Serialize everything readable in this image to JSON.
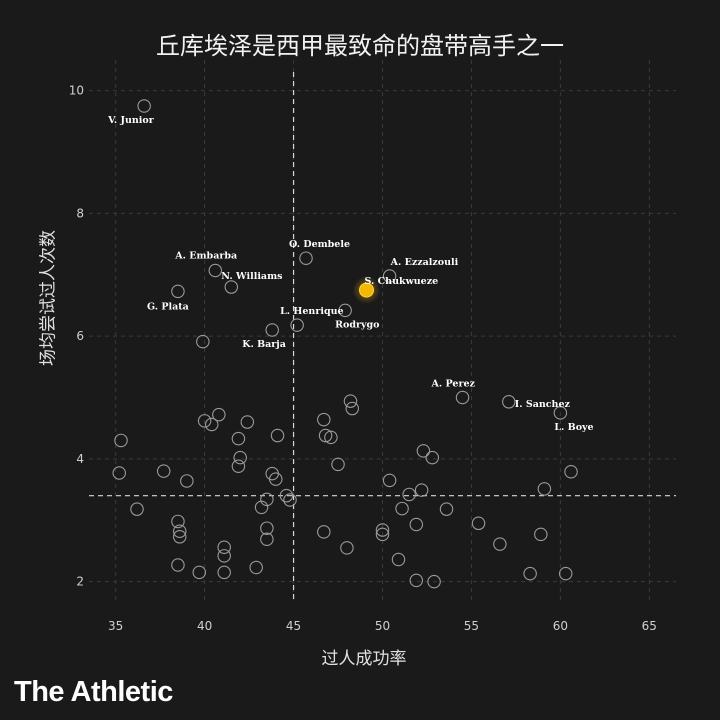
{
  "chart_data": {
    "type": "scatter",
    "title": "丘库埃泽是西甲最致命的盘带高手之一",
    "xlabel": "过人成功率",
    "ylabel": "场均尝试过人次数",
    "xlim": [
      33.5,
      66.5
    ],
    "ylim": [
      1.7,
      10.5
    ],
    "xticks": [
      35,
      40,
      45,
      50,
      55,
      60,
      65
    ],
    "yticks": [
      2,
      4,
      6,
      8,
      10
    ],
    "grid": true,
    "reference_lines": {
      "x": 45,
      "y": 3.4
    },
    "highlight_color": "#f5b800",
    "point_color": "#9a9a9a",
    "labeled_points": [
      {
        "name": "V. Junior",
        "x": 36.6,
        "y": 9.75
      },
      {
        "name": "O. Dembele",
        "x": 45.7,
        "y": 7.27
      },
      {
        "name": "A. Embarba",
        "x": 40.6,
        "y": 7.07
      },
      {
        "name": "A. Ezzalzouli",
        "x": 50.4,
        "y": 6.98
      },
      {
        "name": "N. Williams",
        "x": 41.5,
        "y": 6.8
      },
      {
        "name": "S. Chukwueze",
        "x": 49.1,
        "y": 6.75,
        "highlight": true
      },
      {
        "name": "G. Plata",
        "x": 38.5,
        "y": 6.73
      },
      {
        "name": "Rodrygo",
        "x": 47.9,
        "y": 6.42
      },
      {
        "name": "L. Henrique",
        "x": 45.2,
        "y": 6.18
      },
      {
        "name": "K. Barja",
        "x": 43.8,
        "y": 6.1
      },
      {
        "name": "A. Perez",
        "x": 54.5,
        "y": 5.0
      },
      {
        "name": "I. Sanchez",
        "x": 57.1,
        "y": 4.93
      },
      {
        "name": "L. Boye",
        "x": 60.0,
        "y": 4.75
      }
    ],
    "points": [
      [
        39.9,
        5.91
      ],
      [
        35.3,
        4.3
      ],
      [
        35.2,
        3.77
      ],
      [
        36.2,
        3.18
      ],
      [
        37.7,
        3.8
      ],
      [
        39.0,
        3.64
      ],
      [
        38.5,
        2.98
      ],
      [
        38.6,
        2.82
      ],
      [
        38.6,
        2.73
      ],
      [
        38.5,
        2.27
      ],
      [
        39.7,
        2.15
      ],
      [
        40.0,
        4.62
      ],
      [
        40.8,
        4.72
      ],
      [
        40.4,
        4.56
      ],
      [
        41.9,
        4.33
      ],
      [
        42.4,
        4.6
      ],
      [
        42.0,
        4.02
      ],
      [
        41.9,
        3.88
      ],
      [
        41.1,
        2.56
      ],
      [
        41.1,
        2.42
      ],
      [
        41.1,
        2.15
      ],
      [
        42.9,
        2.23
      ],
      [
        43.8,
        3.76
      ],
      [
        44.0,
        3.67
      ],
      [
        44.1,
        4.38
      ],
      [
        44.6,
        3.4
      ],
      [
        44.8,
        3.33
      ],
      [
        43.2,
        3.21
      ],
      [
        43.5,
        3.34
      ],
      [
        43.5,
        2.87
      ],
      [
        43.5,
        2.69
      ],
      [
        46.7,
        4.64
      ],
      [
        46.8,
        4.38
      ],
      [
        47.1,
        4.35
      ],
      [
        48.2,
        4.94
      ],
      [
        48.3,
        4.82
      ],
      [
        47.5,
        3.91
      ],
      [
        46.7,
        2.81
      ],
      [
        48.0,
        2.55
      ],
      [
        50.0,
        2.84
      ],
      [
        50.0,
        2.77
      ],
      [
        50.4,
        3.65
      ],
      [
        50.9,
        2.36
      ],
      [
        51.1,
        3.19
      ],
      [
        51.5,
        3.42
      ],
      [
        51.9,
        2.93
      ],
      [
        51.9,
        2.02
      ],
      [
        52.2,
        3.49
      ],
      [
        52.3,
        4.13
      ],
      [
        52.8,
        4.02
      ],
      [
        52.9,
        2.0
      ],
      [
        53.6,
        3.18
      ],
      [
        55.4,
        2.95
      ],
      [
        56.6,
        2.61
      ],
      [
        58.3,
        2.13
      ],
      [
        58.9,
        2.77
      ],
      [
        59.1,
        3.51
      ],
      [
        60.3,
        2.13
      ],
      [
        60.6,
        3.79
      ]
    ]
  },
  "brand": "The Athletic"
}
